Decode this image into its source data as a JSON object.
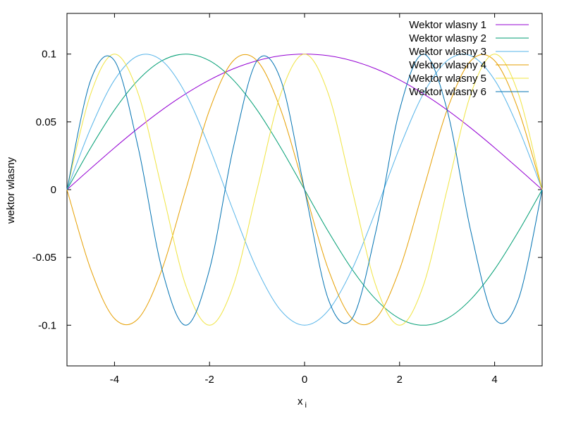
{
  "chart_data": {
    "type": "line",
    "xlabel": "x",
    "xlabel_subscript": "i",
    "ylabel": "wektor wlasny",
    "xlim": [
      -5,
      5
    ],
    "ylim": [
      -0.13,
      0.13
    ],
    "xticks": [
      -4,
      -2,
      0,
      2,
      4
    ],
    "xtick_labels": [
      "-4",
      "-2",
      "0",
      "2",
      "4"
    ],
    "yticks": [
      -0.1,
      -0.05,
      0,
      0.05,
      0.1
    ],
    "ytick_labels": [
      "-0.1",
      "-0.05",
      "0",
      "0.05",
      "0.1"
    ],
    "grid": false,
    "legend_position": "top-right",
    "x": [
      -5,
      -4.5,
      -4,
      -3.5,
      -3,
      -2.5,
      -2,
      -1.5,
      -1,
      -0.5,
      0,
      0.5,
      1,
      1.5,
      2,
      2.5,
      3,
      3.5,
      4,
      4.5,
      5
    ],
    "series": [
      {
        "name": "Wektor wlasny 1",
        "color": "#9400d3",
        "values": [
          0,
          0.0156,
          0.0309,
          0.0454,
          0.0588,
          0.0707,
          0.0809,
          0.0891,
          0.0951,
          0.0988,
          0.1,
          0.0988,
          0.0951,
          0.0891,
          0.0809,
          0.0707,
          0.0588,
          0.0454,
          0.0309,
          0.0156,
          0
        ]
      },
      {
        "name": "Wektor wlasny 2",
        "color": "#009e73",
        "values": [
          0,
          0.0309,
          0.0588,
          0.0809,
          0.0951,
          0.1,
          0.0951,
          0.0809,
          0.0588,
          0.0309,
          0,
          -0.0309,
          -0.0588,
          -0.0809,
          -0.0951,
          -0.1,
          -0.0951,
          -0.0809,
          -0.0588,
          -0.0309,
          0
        ]
      },
      {
        "name": "Wektor wlasny 3",
        "color": "#56b4e9",
        "values": [
          0,
          0.0454,
          0.0809,
          0.0988,
          0.0951,
          0.0707,
          0.0309,
          -0.0156,
          -0.0588,
          -0.0891,
          -0.1,
          -0.0891,
          -0.0588,
          -0.0156,
          0.0309,
          0.0707,
          0.0951,
          0.0988,
          0.0809,
          0.0454,
          0
        ]
      },
      {
        "name": "Wektor wlasny 4",
        "color": "#e69f00",
        "values": [
          0,
          -0.0588,
          -0.0951,
          -0.0951,
          -0.0588,
          0,
          0.0588,
          0.0951,
          0.0951,
          0.0588,
          0,
          -0.0588,
          -0.0951,
          -0.0951,
          -0.0588,
          0,
          0.0588,
          0.0951,
          0.0951,
          0.0588,
          0
        ]
      },
      {
        "name": "Wektor wlasny 5",
        "color": "#f0e442",
        "values": [
          0,
          0.0707,
          0.1,
          0.0707,
          0,
          -0.0707,
          -0.1,
          -0.0707,
          0,
          0.0707,
          0.1,
          0.0707,
          0,
          -0.0707,
          -0.1,
          -0.0707,
          0,
          0.0707,
          0.1,
          0.0707,
          0
        ]
      },
      {
        "name": "Wektor wlasny 6",
        "color": "#0072b2",
        "values": [
          0,
          0.0809,
          0.0951,
          0.0309,
          -0.0588,
          -0.1,
          -0.0588,
          0.0309,
          0.0951,
          0.0809,
          0,
          -0.0809,
          -0.0951,
          -0.0309,
          0.0588,
          0.1,
          0.0588,
          -0.0309,
          -0.0951,
          -0.0809,
          0
        ]
      }
    ]
  }
}
